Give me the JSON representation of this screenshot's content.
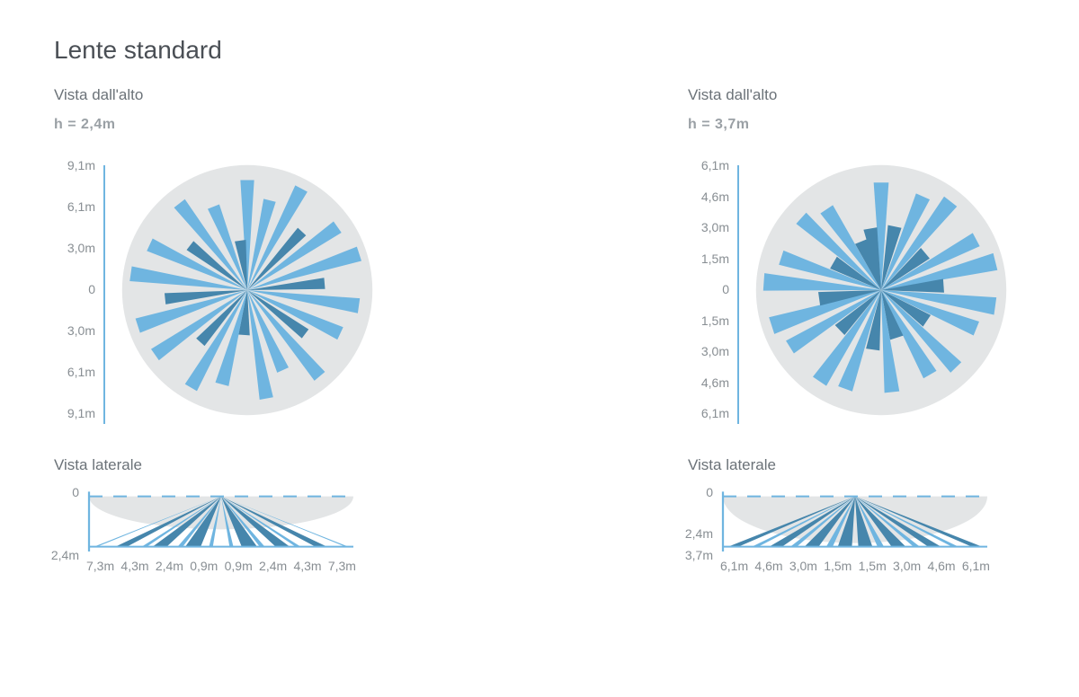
{
  "title": "Lente standard",
  "colors": {
    "background": "#ffffff",
    "disc": "#e3e5e6",
    "beam_light": "#6fb5e0",
    "beam_dark": "#4686ac",
    "axis": "#6fb5e0",
    "text": "#6b7278",
    "text_muted": "#888e93",
    "text_bold": "#9aa0a5",
    "dash": "#6fb5e0"
  },
  "diagrams": [
    {
      "top_label": "Vista dall'alto",
      "height_label": "h = 2,4m",
      "y_ticks": [
        "9,1m",
        "6,1m",
        "3,0m",
        "0",
        "3,0m",
        "6,1m",
        "9,1m"
      ],
      "radial": {
        "disc_radius": 1.0,
        "beams": [
          {
            "angle": 0,
            "len": 0.88,
            "w": 0.055,
            "shade": "light"
          },
          {
            "angle": 14,
            "len": 0.74,
            "w": 0.05,
            "shade": "light"
          },
          {
            "angle": 28,
            "len": 0.92,
            "w": 0.055,
            "shade": "light"
          },
          {
            "angle": 43,
            "len": 0.64,
            "w": 0.045,
            "shade": "dark"
          },
          {
            "angle": 55,
            "len": 0.88,
            "w": 0.055,
            "shade": "light"
          },
          {
            "angle": 72,
            "len": 0.94,
            "w": 0.06,
            "shade": "light"
          },
          {
            "angle": 85,
            "len": 0.62,
            "w": 0.045,
            "shade": "dark"
          },
          {
            "angle": 98,
            "len": 0.9,
            "w": 0.06,
            "shade": "light"
          },
          {
            "angle": 115,
            "len": 0.82,
            "w": 0.055,
            "shade": "light"
          },
          {
            "angle": 127,
            "len": 0.58,
            "w": 0.045,
            "shade": "dark"
          },
          {
            "angle": 140,
            "len": 0.9,
            "w": 0.055,
            "shade": "light"
          },
          {
            "angle": 156,
            "len": 0.7,
            "w": 0.05,
            "shade": "light"
          },
          {
            "angle": 170,
            "len": 0.88,
            "w": 0.055,
            "shade": "light"
          },
          {
            "angle": 184,
            "len": 0.36,
            "w": 0.045,
            "shade": "dark"
          },
          {
            "angle": 195,
            "len": 0.78,
            "w": 0.055,
            "shade": "light"
          },
          {
            "angle": 210,
            "len": 0.9,
            "w": 0.055,
            "shade": "light"
          },
          {
            "angle": 222,
            "len": 0.56,
            "w": 0.045,
            "shade": "dark"
          },
          {
            "angle": 235,
            "len": 0.9,
            "w": 0.055,
            "shade": "light"
          },
          {
            "angle": 252,
            "len": 0.92,
            "w": 0.06,
            "shade": "light"
          },
          {
            "angle": 264,
            "len": 0.66,
            "w": 0.045,
            "shade": "dark"
          },
          {
            "angle": 278,
            "len": 0.94,
            "w": 0.06,
            "shade": "light"
          },
          {
            "angle": 295,
            "len": 0.86,
            "w": 0.055,
            "shade": "light"
          },
          {
            "angle": 308,
            "len": 0.58,
            "w": 0.045,
            "shade": "dark"
          },
          {
            "angle": 322,
            "len": 0.88,
            "w": 0.055,
            "shade": "light"
          },
          {
            "angle": 338,
            "len": 0.72,
            "w": 0.05,
            "shade": "light"
          },
          {
            "angle": 352,
            "len": 0.4,
            "w": 0.045,
            "shade": "dark"
          }
        ]
      },
      "side_label": "Vista laterale",
      "side": {
        "y_ticks": [
          "0",
          "2,4m"
        ],
        "y_positions": [
          0,
          1
        ],
        "x_ticks": [
          "7,3m",
          "4,3m",
          "2,4m",
          "0,9m",
          "0,9m",
          "2,4m",
          "4,3m",
          "7,3m"
        ],
        "ellipse_h": 0.55,
        "beams": [
          {
            "x": -0.98,
            "shade": "light",
            "w": 0.012
          },
          {
            "x": -0.78,
            "shade": "dark",
            "w": 0.045
          },
          {
            "x": -0.6,
            "shade": "light",
            "w": 0.02
          },
          {
            "x": -0.48,
            "shade": "dark",
            "w": 0.055
          },
          {
            "x": -0.32,
            "shade": "light",
            "w": 0.02
          },
          {
            "x": -0.22,
            "shade": "dark",
            "w": 0.06
          },
          {
            "x": -0.08,
            "shade": "light",
            "w": 0.015
          },
          {
            "x": 0.08,
            "shade": "light",
            "w": 0.015
          },
          {
            "x": 0.22,
            "shade": "dark",
            "w": 0.06
          },
          {
            "x": 0.32,
            "shade": "light",
            "w": 0.02
          },
          {
            "x": 0.48,
            "shade": "dark",
            "w": 0.055
          },
          {
            "x": 0.6,
            "shade": "light",
            "w": 0.02
          },
          {
            "x": 0.78,
            "shade": "dark",
            "w": 0.045
          },
          {
            "x": 0.98,
            "shade": "light",
            "w": 0.012
          }
        ]
      }
    },
    {
      "top_label": "Vista dall'alto",
      "height_label": "h = 3,7m",
      "y_ticks": [
        "6,1m",
        "4,6m",
        "3,0m",
        "1,5m",
        "0",
        "1,5m",
        "3,0m",
        "4,6m",
        "6,1m"
      ],
      "radial": {
        "disc_radius": 1.0,
        "beams": [
          {
            "angle": 0,
            "len": 0.86,
            "w": 0.06,
            "shade": "light"
          },
          {
            "angle": 12,
            "len": 0.52,
            "w": 0.055,
            "shade": "dark"
          },
          {
            "angle": 24,
            "len": 0.82,
            "w": 0.06,
            "shade": "light"
          },
          {
            "angle": 38,
            "len": 0.9,
            "w": 0.065,
            "shade": "light"
          },
          {
            "angle": 50,
            "len": 0.46,
            "w": 0.055,
            "shade": "dark"
          },
          {
            "angle": 62,
            "len": 0.86,
            "w": 0.06,
            "shade": "light"
          },
          {
            "angle": 76,
            "len": 0.94,
            "w": 0.07,
            "shade": "light"
          },
          {
            "angle": 86,
            "len": 0.5,
            "w": 0.055,
            "shade": "dark"
          },
          {
            "angle": 98,
            "len": 0.92,
            "w": 0.07,
            "shade": "light"
          },
          {
            "angle": 112,
            "len": 0.82,
            "w": 0.06,
            "shade": "light"
          },
          {
            "angle": 124,
            "len": 0.44,
            "w": 0.055,
            "shade": "dark"
          },
          {
            "angle": 136,
            "len": 0.86,
            "w": 0.06,
            "shade": "light"
          },
          {
            "angle": 150,
            "len": 0.78,
            "w": 0.06,
            "shade": "light"
          },
          {
            "angle": 162,
            "len": 0.4,
            "w": 0.055,
            "shade": "dark"
          },
          {
            "angle": 174,
            "len": 0.82,
            "w": 0.06,
            "shade": "light"
          },
          {
            "angle": 188,
            "len": 0.48,
            "w": 0.055,
            "shade": "dark"
          },
          {
            "angle": 200,
            "len": 0.84,
            "w": 0.06,
            "shade": "light"
          },
          {
            "angle": 214,
            "len": 0.88,
            "w": 0.065,
            "shade": "light"
          },
          {
            "angle": 226,
            "len": 0.46,
            "w": 0.055,
            "shade": "dark"
          },
          {
            "angle": 238,
            "len": 0.86,
            "w": 0.06,
            "shade": "light"
          },
          {
            "angle": 252,
            "len": 0.92,
            "w": 0.07,
            "shade": "light"
          },
          {
            "angle": 262,
            "len": 0.5,
            "w": 0.055,
            "shade": "dark"
          },
          {
            "angle": 274,
            "len": 0.94,
            "w": 0.07,
            "shade": "light"
          },
          {
            "angle": 288,
            "len": 0.84,
            "w": 0.06,
            "shade": "light"
          },
          {
            "angle": 300,
            "len": 0.44,
            "w": 0.055,
            "shade": "dark"
          },
          {
            "angle": 312,
            "len": 0.86,
            "w": 0.06,
            "shade": "light"
          },
          {
            "angle": 326,
            "len": 0.78,
            "w": 0.06,
            "shade": "light"
          },
          {
            "angle": 338,
            "len": 0.42,
            "w": 0.055,
            "shade": "dark"
          },
          {
            "angle": 350,
            "len": 0.5,
            "w": 0.055,
            "shade": "dark"
          }
        ]
      },
      "side_label": "Vista laterale",
      "side": {
        "y_ticks": [
          "0",
          "2,4m",
          "3,7m"
        ],
        "y_positions": [
          0,
          0.65,
          1
        ],
        "x_ticks": [
          "6,1m",
          "4,6m",
          "3,0m",
          "1,5m",
          "1,5m",
          "3,0m",
          "4,6m",
          "6,1m"
        ],
        "ellipse_h": 0.78,
        "beams": [
          {
            "x": -0.95,
            "shade": "dark",
            "w": 0.04
          },
          {
            "x": -0.78,
            "shade": "light",
            "w": 0.025
          },
          {
            "x": -0.62,
            "shade": "dark",
            "w": 0.05
          },
          {
            "x": -0.48,
            "shade": "light",
            "w": 0.025
          },
          {
            "x": -0.34,
            "shade": "dark",
            "w": 0.055
          },
          {
            "x": -0.2,
            "shade": "light",
            "w": 0.025
          },
          {
            "x": -0.08,
            "shade": "dark",
            "w": 0.055
          },
          {
            "x": 0.08,
            "shade": "dark",
            "w": 0.055
          },
          {
            "x": 0.2,
            "shade": "light",
            "w": 0.025
          },
          {
            "x": 0.34,
            "shade": "dark",
            "w": 0.055
          },
          {
            "x": 0.48,
            "shade": "light",
            "w": 0.025
          },
          {
            "x": 0.62,
            "shade": "dark",
            "w": 0.05
          },
          {
            "x": 0.78,
            "shade": "light",
            "w": 0.025
          },
          {
            "x": 0.95,
            "shade": "dark",
            "w": 0.04
          }
        ]
      }
    }
  ]
}
